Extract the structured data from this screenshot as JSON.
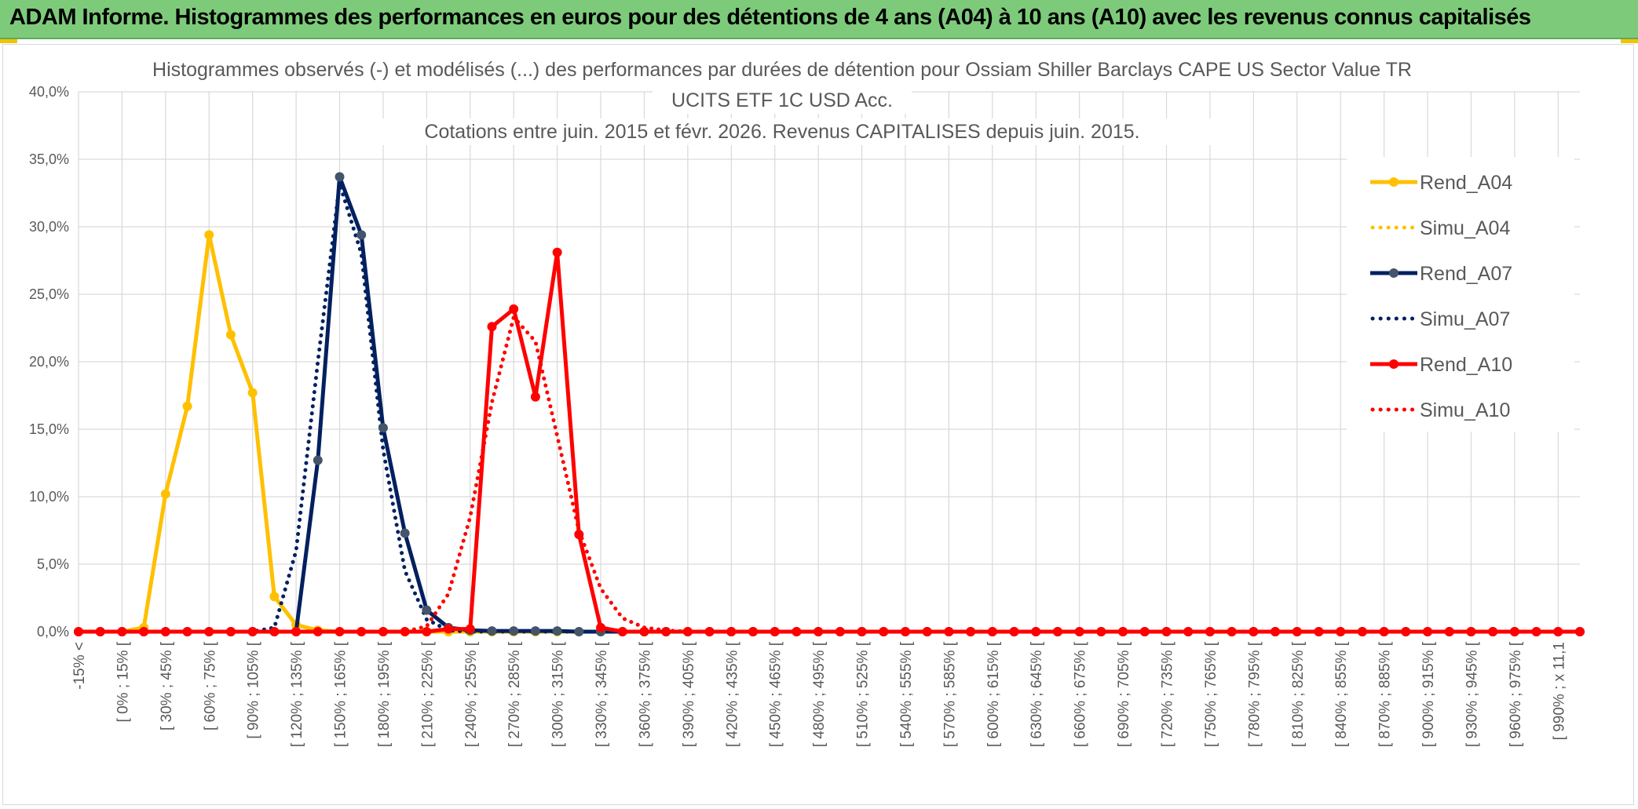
{
  "header": {
    "title": "ADAM Informe. Histogrammes des performances en euros pour des détentions de 4 ans (A04) à 10 ans (A10) avec les revenus connus capitalisés"
  },
  "colors": {
    "a04": "#ffc000",
    "a07": "#002060",
    "a10": "#ff0000",
    "grid": "#d9d9d9",
    "marker07": "#44546a"
  },
  "chart_data": {
    "type": "line",
    "title_lines": [
      "Histogrammes observés (-) et modélisés (...) des performances par durées de détention pour Ossiam Shiller Barclays CAPE US Sector Value TR",
      "UCITS ETF 1C USD Acc.",
      "Cotations entre juin. 2015 et févr. 2026. Revenus CAPITALISES depuis juin. 2015."
    ],
    "ylim": [
      0,
      40
    ],
    "y_ticks": [
      "0,0%",
      "5,0%",
      "10,0%",
      "15,0%",
      "20,0%",
      "25,0%",
      "30,0%",
      "35,0%",
      "40,0%"
    ],
    "x_labels": [
      "-15% <",
      "[ 0% ; 15% [",
      "[ 30% ; 45% [",
      "[ 60% ; 75% [",
      "[ 90% ; 105% [",
      "[ 120% ; 135% [",
      "[ 150% ; 165% [",
      "[ 180% ; 195% [",
      "[ 210% ; 225% [",
      "[ 240% ; 255% [",
      "[ 270% ; 285% [",
      "[ 300% ; 315% [",
      "[ 330% ; 345% [",
      "[ 360% ; 375% [",
      "[ 390% ; 405% [",
      "[ 420% ; 435% [",
      "[ 450% ; 465% [",
      "[ 480% ; 495% [",
      "[ 510% ; 525% [",
      "[ 540% ; 555% [",
      "[ 570% ; 585% [",
      "[ 600% ; 615% [",
      "[ 630% ; 645% [",
      "[ 660% ; 675% [",
      "[ 690% ; 705% [",
      "[ 720% ; 735% [",
      "[ 750% ; 765% [",
      "[ 780% ; 795% [",
      "[ 810% ; 825% [",
      "[ 840% ; 855% [",
      "[ 870% ; 885% [",
      "[ 900% ; 915% [",
      "[ 930% ; 945% [",
      "[ 960% ; 975% [",
      "[ 990% ; x 11,1"
    ],
    "n_points": 70,
    "legend_position": "right",
    "series": [
      {
        "name": "Rend_A04",
        "style": "solid",
        "color": "#ffc000",
        "values": [
          0,
          0,
          0,
          0.3,
          10.2,
          16.7,
          29.4,
          22.0,
          17.7,
          2.6,
          0.5,
          0.1,
          0,
          0,
          0,
          0,
          0,
          0,
          0,
          0,
          0,
          0,
          0,
          0,
          0,
          0,
          0,
          0,
          0,
          0,
          0,
          0,
          0,
          0,
          0,
          0,
          0,
          0,
          0,
          0,
          0,
          0,
          0,
          0,
          0,
          0,
          0,
          0,
          0,
          0,
          0,
          0,
          0,
          0,
          0,
          0,
          0,
          0,
          0,
          0,
          0,
          0,
          0,
          0,
          0,
          0,
          0,
          0,
          0,
          0
        ]
      },
      {
        "name": "Simu_A04",
        "style": "dotted",
        "color": "#ffc000",
        "values": [
          0,
          0,
          0,
          0.3,
          10.2,
          16.7,
          29.4,
          22.0,
          17.7,
          2.6,
          0.5,
          0.1,
          0,
          0,
          0,
          0,
          0,
          0,
          0,
          0,
          0,
          0,
          0,
          0,
          0,
          0,
          0,
          0,
          0,
          0,
          0,
          0,
          0,
          0,
          0,
          0,
          0,
          0,
          0,
          0,
          0,
          0,
          0,
          0,
          0,
          0,
          0,
          0,
          0,
          0,
          0,
          0,
          0,
          0,
          0,
          0,
          0,
          0,
          0,
          0,
          0,
          0,
          0,
          0,
          0,
          0,
          0,
          0,
          0,
          0
        ]
      },
      {
        "name": "Rend_A07",
        "style": "solid",
        "color": "#002060",
        "values": [
          0,
          0,
          0,
          0,
          0,
          0,
          0,
          0,
          0,
          0,
          0,
          12.7,
          33.7,
          29.4,
          15.1,
          7.3,
          1.6,
          0.3,
          0.1,
          0.05,
          0.05,
          0.05,
          0.05,
          0,
          0,
          0,
          0,
          0,
          0,
          0,
          0,
          0,
          0,
          0,
          0,
          0,
          0,
          0,
          0,
          0,
          0,
          0,
          0,
          0,
          0,
          0,
          0,
          0,
          0,
          0,
          0,
          0,
          0,
          0,
          0,
          0,
          0,
          0,
          0,
          0,
          0,
          0,
          0,
          0,
          0,
          0,
          0,
          0,
          0,
          0
        ]
      },
      {
        "name": "Simu_A07",
        "style": "dotted",
        "color": "#002060",
        "values": [
          0,
          0,
          0,
          0,
          0,
          0,
          0,
          0,
          0,
          0.3,
          6.0,
          20.0,
          33.2,
          28.0,
          13.5,
          4.5,
          0.9,
          0.1,
          0,
          0,
          0,
          0,
          0,
          0,
          0,
          0,
          0,
          0,
          0,
          0,
          0,
          0,
          0,
          0,
          0,
          0,
          0,
          0,
          0,
          0,
          0,
          0,
          0,
          0,
          0,
          0,
          0,
          0,
          0,
          0,
          0,
          0,
          0,
          0,
          0,
          0,
          0,
          0,
          0,
          0,
          0,
          0,
          0,
          0,
          0,
          0,
          0,
          0,
          0,
          0
        ]
      },
      {
        "name": "Rend_A10",
        "style": "solid",
        "color": "#ff0000",
        "values": [
          0,
          0,
          0,
          0,
          0,
          0,
          0,
          0,
          0,
          0,
          0,
          0,
          0,
          0,
          0,
          0,
          0,
          0.2,
          0.2,
          22.6,
          23.9,
          17.4,
          28.1,
          7.2,
          0.3,
          0,
          0,
          0,
          0,
          0,
          0,
          0,
          0,
          0,
          0,
          0,
          0,
          0,
          0,
          0,
          0,
          0,
          0,
          0,
          0,
          0,
          0,
          0,
          0,
          0,
          0,
          0,
          0,
          0,
          0,
          0,
          0,
          0,
          0,
          0,
          0,
          0,
          0,
          0,
          0,
          0,
          0,
          0,
          0,
          0
        ]
      },
      {
        "name": "Simu_A10",
        "style": "dotted",
        "color": "#ff0000",
        "values": [
          0,
          0,
          0,
          0,
          0,
          0,
          0,
          0,
          0,
          0,
          0,
          0,
          0,
          0,
          0,
          0,
          0.4,
          2.8,
          8.5,
          17.0,
          23.3,
          21.5,
          14.5,
          7.5,
          3.2,
          1.0,
          0.3,
          0.1,
          0,
          0,
          0,
          0,
          0,
          0,
          0,
          0,
          0,
          0,
          0,
          0,
          0,
          0,
          0,
          0,
          0,
          0,
          0,
          0,
          0,
          0,
          0,
          0,
          0,
          0,
          0,
          0,
          0,
          0,
          0,
          0,
          0,
          0,
          0,
          0,
          0,
          0,
          0,
          0,
          0,
          0
        ]
      }
    ]
  }
}
